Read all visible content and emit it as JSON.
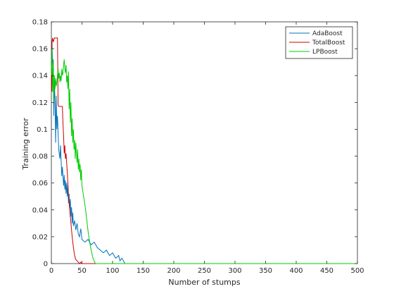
{
  "chart_data": {
    "type": "line",
    "title": "",
    "xlabel": "Number of stumps",
    "ylabel": "Training error",
    "xlim": [
      0,
      500
    ],
    "ylim": [
      0,
      0.18
    ],
    "xticks": [
      0,
      50,
      100,
      150,
      200,
      250,
      300,
      350,
      400,
      450,
      500
    ],
    "yticks": [
      0,
      0.02,
      0.04,
      0.06,
      0.08,
      0.1,
      0.12,
      0.14,
      0.16,
      0.18
    ],
    "xtick_labels": [
      "0",
      "50",
      "100",
      "150",
      "200",
      "250",
      "300",
      "350",
      "400",
      "450",
      "500"
    ],
    "ytick_labels": [
      "0",
      "0.02",
      "0.04",
      "0.06",
      "0.08",
      "0.1",
      "0.12",
      "0.14",
      "0.16",
      "0.18"
    ],
    "grid": false,
    "legend_position": "top-right",
    "series": [
      {
        "name": "AdaBoost",
        "color": "#0072bd",
        "x": [
          1,
          2,
          3,
          4,
          5,
          6,
          7,
          8,
          9,
          10,
          12,
          14,
          15,
          17,
          18,
          20,
          21,
          22,
          23,
          24,
          25,
          26,
          27,
          28,
          29,
          30,
          31,
          32,
          33,
          34,
          35,
          36,
          38,
          40,
          42,
          44,
          46,
          48,
          50,
          55,
          60,
          65,
          70,
          75,
          80,
          85,
          90,
          95,
          100,
          105,
          110,
          112,
          115,
          118,
          120,
          125,
          500
        ],
        "y": [
          0.165,
          0.148,
          0.152,
          0.11,
          0.135,
          0.12,
          0.09,
          0.125,
          0.1,
          0.11,
          0.085,
          0.078,
          0.088,
          0.065,
          0.072,
          0.058,
          0.066,
          0.055,
          0.062,
          0.052,
          0.06,
          0.05,
          0.058,
          0.045,
          0.052,
          0.04,
          0.048,
          0.035,
          0.042,
          0.03,
          0.038,
          0.028,
          0.032,
          0.025,
          0.03,
          0.022,
          0.02,
          0.026,
          0.018,
          0.016,
          0.018,
          0.014,
          0.016,
          0.012,
          0.01,
          0.008,
          0.01,
          0.006,
          0.008,
          0.004,
          0.006,
          0.002,
          0.004,
          0.002,
          0.0,
          0.0,
          0.0
        ]
      },
      {
        "name": "TotalBoost",
        "color": "#cc0000",
        "x": [
          0,
          0.5,
          1,
          2,
          3,
          5,
          6,
          10,
          11,
          12,
          18,
          19,
          20,
          21,
          22,
          23,
          24,
          25,
          26,
          27,
          28,
          30,
          32,
          34,
          36,
          38,
          40,
          42,
          44,
          46,
          48,
          50,
          52,
          55,
          500
        ],
        "y": [
          0.145,
          0.128,
          0.165,
          0.168,
          0.165,
          0.168,
          0.168,
          0.168,
          0.118,
          0.117,
          0.117,
          0.104,
          0.095,
          0.082,
          0.088,
          0.078,
          0.082,
          0.075,
          0.068,
          0.06,
          0.05,
          0.04,
          0.03,
          0.02,
          0.012,
          0.006,
          0.003,
          0.002,
          0.001,
          0.0,
          0.001,
          0.0,
          0.0,
          0.0,
          0.0
        ]
      },
      {
        "name": "LPBoost",
        "color": "#00cc00",
        "x": [
          0,
          1,
          2,
          3,
          4,
          5,
          6,
          7,
          8,
          9,
          10,
          11,
          12,
          13,
          14,
          15,
          16,
          17,
          18,
          19,
          20,
          21,
          22,
          23,
          24,
          25,
          26,
          27,
          28,
          29,
          30,
          31,
          32,
          33,
          34,
          35,
          36,
          37,
          38,
          39,
          40,
          41,
          42,
          43,
          44,
          45,
          46,
          47,
          48,
          49,
          50,
          52,
          54,
          56,
          58,
          60,
          62,
          64,
          66,
          68,
          70,
          72,
          500
        ],
        "y": [
          0.14,
          0.16,
          0.128,
          0.15,
          0.12,
          0.14,
          0.13,
          0.138,
          0.132,
          0.135,
          0.14,
          0.145,
          0.138,
          0.142,
          0.135,
          0.14,
          0.136,
          0.145,
          0.14,
          0.142,
          0.148,
          0.152,
          0.145,
          0.142,
          0.148,
          0.135,
          0.14,
          0.13,
          0.143,
          0.115,
          0.13,
          0.105,
          0.12,
          0.095,
          0.108,
          0.09,
          0.1,
          0.085,
          0.092,
          0.078,
          0.09,
          0.082,
          0.075,
          0.085,
          0.07,
          0.078,
          0.068,
          0.074,
          0.062,
          0.07,
          0.058,
          0.052,
          0.046,
          0.04,
          0.032,
          0.024,
          0.018,
          0.012,
          0.008,
          0.004,
          0.002,
          0.0,
          0.0
        ]
      }
    ]
  }
}
